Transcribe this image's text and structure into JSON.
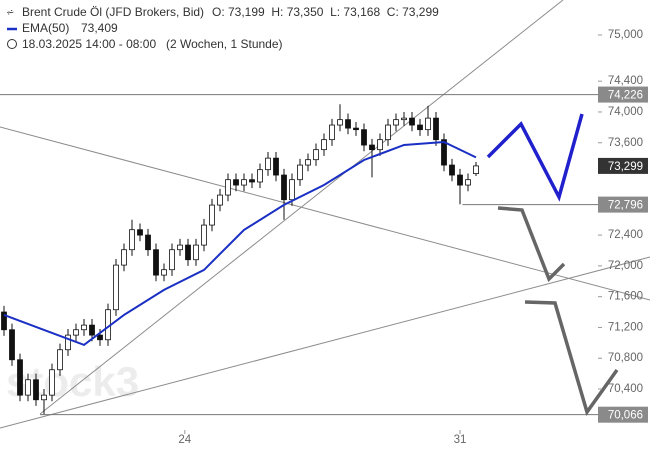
{
  "chart_data": {
    "type": "candlestick",
    "title": "Brent Crude Öl (JFD Brokers, Bid)",
    "ohlc_label": "O: 73,199  H: 73,350  L: 73,168  C: 73,299",
    "period": "18.03.2025 14:00 - 08:00",
    "timeframe": "(2 Wochen, 1 Stunde)",
    "watermark": "stock3",
    "xlim": [
      -0.5,
      74.25
    ],
    "xticks": [
      {
        "value": 22.6,
        "label": "24"
      },
      {
        "value": 57,
        "label": "31"
      }
    ],
    "ylim": [
      69867,
      75455
    ],
    "yticks": [
      {
        "value": 75000,
        "label": "75,000"
      },
      {
        "value": 74400,
        "label": "74,400"
      },
      {
        "value": 74000,
        "label": "74,000"
      },
      {
        "value": 73600,
        "label": "73,600"
      },
      {
        "value": 72400,
        "label": "72,400"
      },
      {
        "value": 72000,
        "label": "72,000"
      },
      {
        "value": 71600,
        "label": "71,600"
      },
      {
        "value": 71200,
        "label": "71,200"
      },
      {
        "value": 70800,
        "label": "70,800"
      },
      {
        "value": 70400,
        "label": "70,400"
      }
    ],
    "up_color": "#ffffff",
    "down_color": "#111111",
    "ohlc": [
      [
        71400,
        71480,
        71090,
        71170
      ],
      [
        71170,
        71250,
        70700,
        70780
      ],
      [
        70780,
        70860,
        70240,
        70320
      ],
      [
        70320,
        70600,
        70240,
        70520
      ],
      [
        70520,
        70600,
        70180,
        70260
      ],
      [
        70260,
        70400,
        70070,
        70320
      ],
      [
        70320,
        70730,
        70240,
        70650
      ],
      [
        70650,
        70990,
        70570,
        70910
      ],
      [
        70910,
        71180,
        70830,
        71100
      ],
      [
        71100,
        71250,
        71020,
        71170
      ],
      [
        71170,
        71310,
        71090,
        71230
      ],
      [
        71230,
        71310,
        71020,
        71100
      ],
      [
        71100,
        71180,
        70960,
        71040
      ],
      [
        71040,
        71510,
        70960,
        71430
      ],
      [
        71430,
        72090,
        71350,
        72010
      ],
      [
        72010,
        72290,
        71930,
        72210
      ],
      [
        72210,
        72600,
        72130,
        72470
      ],
      [
        72470,
        72550,
        72320,
        72400
      ],
      [
        72400,
        72480,
        72130,
        72210
      ],
      [
        72210,
        72290,
        71800,
        71880
      ],
      [
        71880,
        72030,
        71800,
        71950
      ],
      [
        71950,
        72290,
        71870,
        72210
      ],
      [
        72210,
        72350,
        72130,
        72270
      ],
      [
        72270,
        72350,
        72000,
        72080
      ],
      [
        72080,
        72350,
        72000,
        72270
      ],
      [
        72270,
        72610,
        72190,
        72530
      ],
      [
        72530,
        72870,
        72450,
        72790
      ],
      [
        72790,
        73000,
        72710,
        72920
      ],
      [
        72920,
        73200,
        72840,
        73120
      ],
      [
        73120,
        73200,
        72970,
        73050
      ],
      [
        73050,
        73200,
        72970,
        73120
      ],
      [
        73120,
        73200,
        73010,
        73090
      ],
      [
        73090,
        73330,
        73010,
        73250
      ],
      [
        73250,
        73480,
        73170,
        73400
      ],
      [
        73400,
        73480,
        73100,
        73180
      ],
      [
        73180,
        73260,
        72600,
        72860
      ],
      [
        72860,
        73200,
        72780,
        73120
      ],
      [
        73120,
        73390,
        73040,
        73310
      ],
      [
        73310,
        73460,
        73230,
        73380
      ],
      [
        73380,
        73590,
        73300,
        73510
      ],
      [
        73510,
        73720,
        73430,
        73640
      ],
      [
        73640,
        73910,
        73560,
        73830
      ],
      [
        73830,
        74100,
        73750,
        73900
      ],
      [
        73900,
        73980,
        73710,
        73790
      ],
      [
        73790,
        73870,
        73690,
        73770
      ],
      [
        73770,
        73850,
        73490,
        73570
      ],
      [
        73570,
        73650,
        73150,
        73510
      ],
      [
        73510,
        73720,
        73430,
        73640
      ],
      [
        73640,
        73910,
        73560,
        73830
      ],
      [
        73830,
        73980,
        73750,
        73900
      ],
      [
        73900,
        74000,
        73820,
        73920
      ],
      [
        73920,
        74000,
        73750,
        73830
      ],
      [
        73830,
        73910,
        73690,
        73770
      ],
      [
        73770,
        74080,
        73690,
        73920
      ],
      [
        73920,
        74000,
        73560,
        73640
      ],
      [
        73640,
        73720,
        73230,
        73310
      ],
      [
        73310,
        73390,
        73100,
        73180
      ],
      [
        73180,
        73260,
        72800,
        73050
      ],
      [
        73050,
        73200,
        72970,
        73120
      ],
      [
        73199,
        73350,
        73168,
        73299
      ]
    ],
    "series": [
      {
        "name": "EMA(50)",
        "color": "#1a2fc4",
        "value_label": "73,409",
        "x": [
          0,
          5,
          10,
          15,
          20,
          25,
          30,
          35,
          40,
          45,
          50,
          55,
          59
        ],
        "values": [
          71363,
          71168,
          70973,
          71363,
          71688,
          71947,
          72467,
          72792,
          73051,
          73376,
          73571,
          73610,
          73409
        ]
      }
    ],
    "price_markers": [
      {
        "value": 74226,
        "label": "74,226",
        "color": "#8a8a8a",
        "line_from": -0.5
      },
      {
        "value": 73299,
        "label": "73,299",
        "color": "#333333"
      },
      {
        "value": 72796,
        "label": "72,796",
        "color": "#8a8a8a",
        "line_from": 57.3
      },
      {
        "value": 70066,
        "label": "70,066",
        "color": "#8a8a8a",
        "line_from": 4.5
      }
    ]
  }
}
